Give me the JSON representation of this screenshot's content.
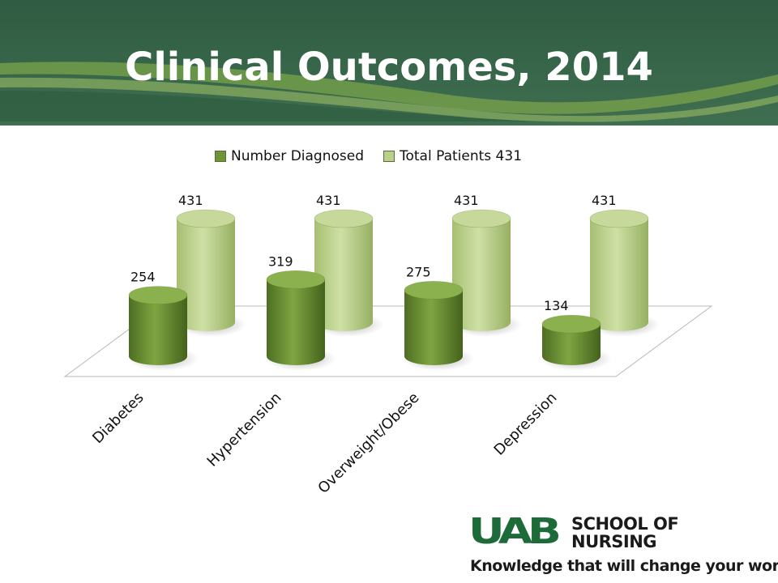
{
  "slide": {
    "title": "Clinical Outcomes, 2014",
    "banner_color": "#3c6a50"
  },
  "brand": {
    "word": "UAB",
    "line1": "SCHOOL OF",
    "line2": "NURSING",
    "tagline": "Knowledge that will change your world",
    "color": "#1e6b3a"
  },
  "chart_data": {
    "type": "bar",
    "title": "",
    "categories": [
      "Diabetes",
      "Hypertension",
      "Overweight/Obese",
      "Depression"
    ],
    "series": [
      {
        "name": "Number Diagnosed",
        "values": [
          254,
          319,
          275,
          134
        ],
        "color": "#6f9436"
      },
      {
        "name": "Total Patients 431",
        "values": [
          431,
          431,
          431,
          431
        ],
        "color": "#b9cf8a"
      }
    ],
    "ylim": [
      0,
      431
    ],
    "legend": "top",
    "grid": false
  }
}
